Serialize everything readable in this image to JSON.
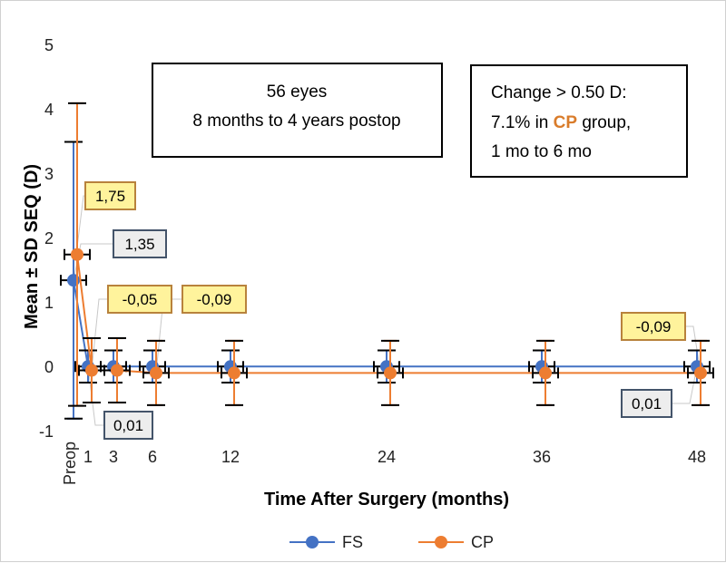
{
  "chart_data": {
    "type": "line",
    "ylabel": "Mean ± SD SEQ (D)",
    "xlabel": "Time After Surgery (months)",
    "ylim": [
      -1,
      5
    ],
    "yticks": [
      "-1",
      "0",
      "1",
      "2",
      "3",
      "4",
      "5"
    ],
    "xticks": [
      {
        "label": "Preop",
        "x": 0
      },
      {
        "label": "1",
        "x": 1
      },
      {
        "label": "3",
        "x": 3
      },
      {
        "label": "6",
        "x": 6
      },
      {
        "label": "12",
        "x": 12
      },
      {
        "label": "24",
        "x": 24
      },
      {
        "label": "36",
        "x": 36
      },
      {
        "label": "48",
        "x": 48
      }
    ],
    "grid": false,
    "legend_position": "bottom",
    "series": [
      {
        "name": "FS",
        "color": "#4472C4",
        "x": [
          0,
          1,
          3,
          6,
          12,
          24,
          36,
          48
        ],
        "y": [
          1.35,
          0.01,
          0.01,
          0.01,
          0.01,
          0.01,
          0.01,
          0.01
        ],
        "sd": [
          2.15,
          0.25,
          0.25,
          0.25,
          0.25,
          0.25,
          0.25,
          0.25
        ]
      },
      {
        "name": "CP",
        "color": "#ED7D31",
        "x": [
          0,
          1,
          3,
          6,
          12,
          24,
          36,
          48
        ],
        "y": [
          1.75,
          -0.05,
          -0.05,
          -0.09,
          -0.09,
          -0.09,
          -0.09,
          -0.09
        ],
        "sd": [
          2.35,
          0.5,
          0.5,
          0.5,
          0.5,
          0.5,
          0.5,
          0.5
        ]
      }
    ],
    "notes": {
      "eyes": [
        "56 eyes",
        "8 months to 4 years postop"
      ],
      "change_line1": "Change > 0.50 D:",
      "change_line2_pre": "7.1% in ",
      "change_line2_cp": "CP",
      "change_line2_post": " group,",
      "change_line3": "1 mo to 6 mo"
    },
    "data_labels": [
      {
        "series": "CP",
        "text": "1,75"
      },
      {
        "series": "FS",
        "text": "1,35"
      },
      {
        "series": "CP",
        "text": "-0,05"
      },
      {
        "series": "CP",
        "text": "-0,09"
      },
      {
        "series": "FS",
        "text": "0,01"
      },
      {
        "series": "CP",
        "text": "-0,09"
      },
      {
        "series": "FS",
        "text": "0,01"
      }
    ],
    "label_colors": {
      "cp_fill": "#FFF39C",
      "cp_border": "#B8823C",
      "fs_fill": "#EDEDED",
      "fs_border": "#44546A",
      "cp_text_accent": "#D97C2B"
    }
  }
}
